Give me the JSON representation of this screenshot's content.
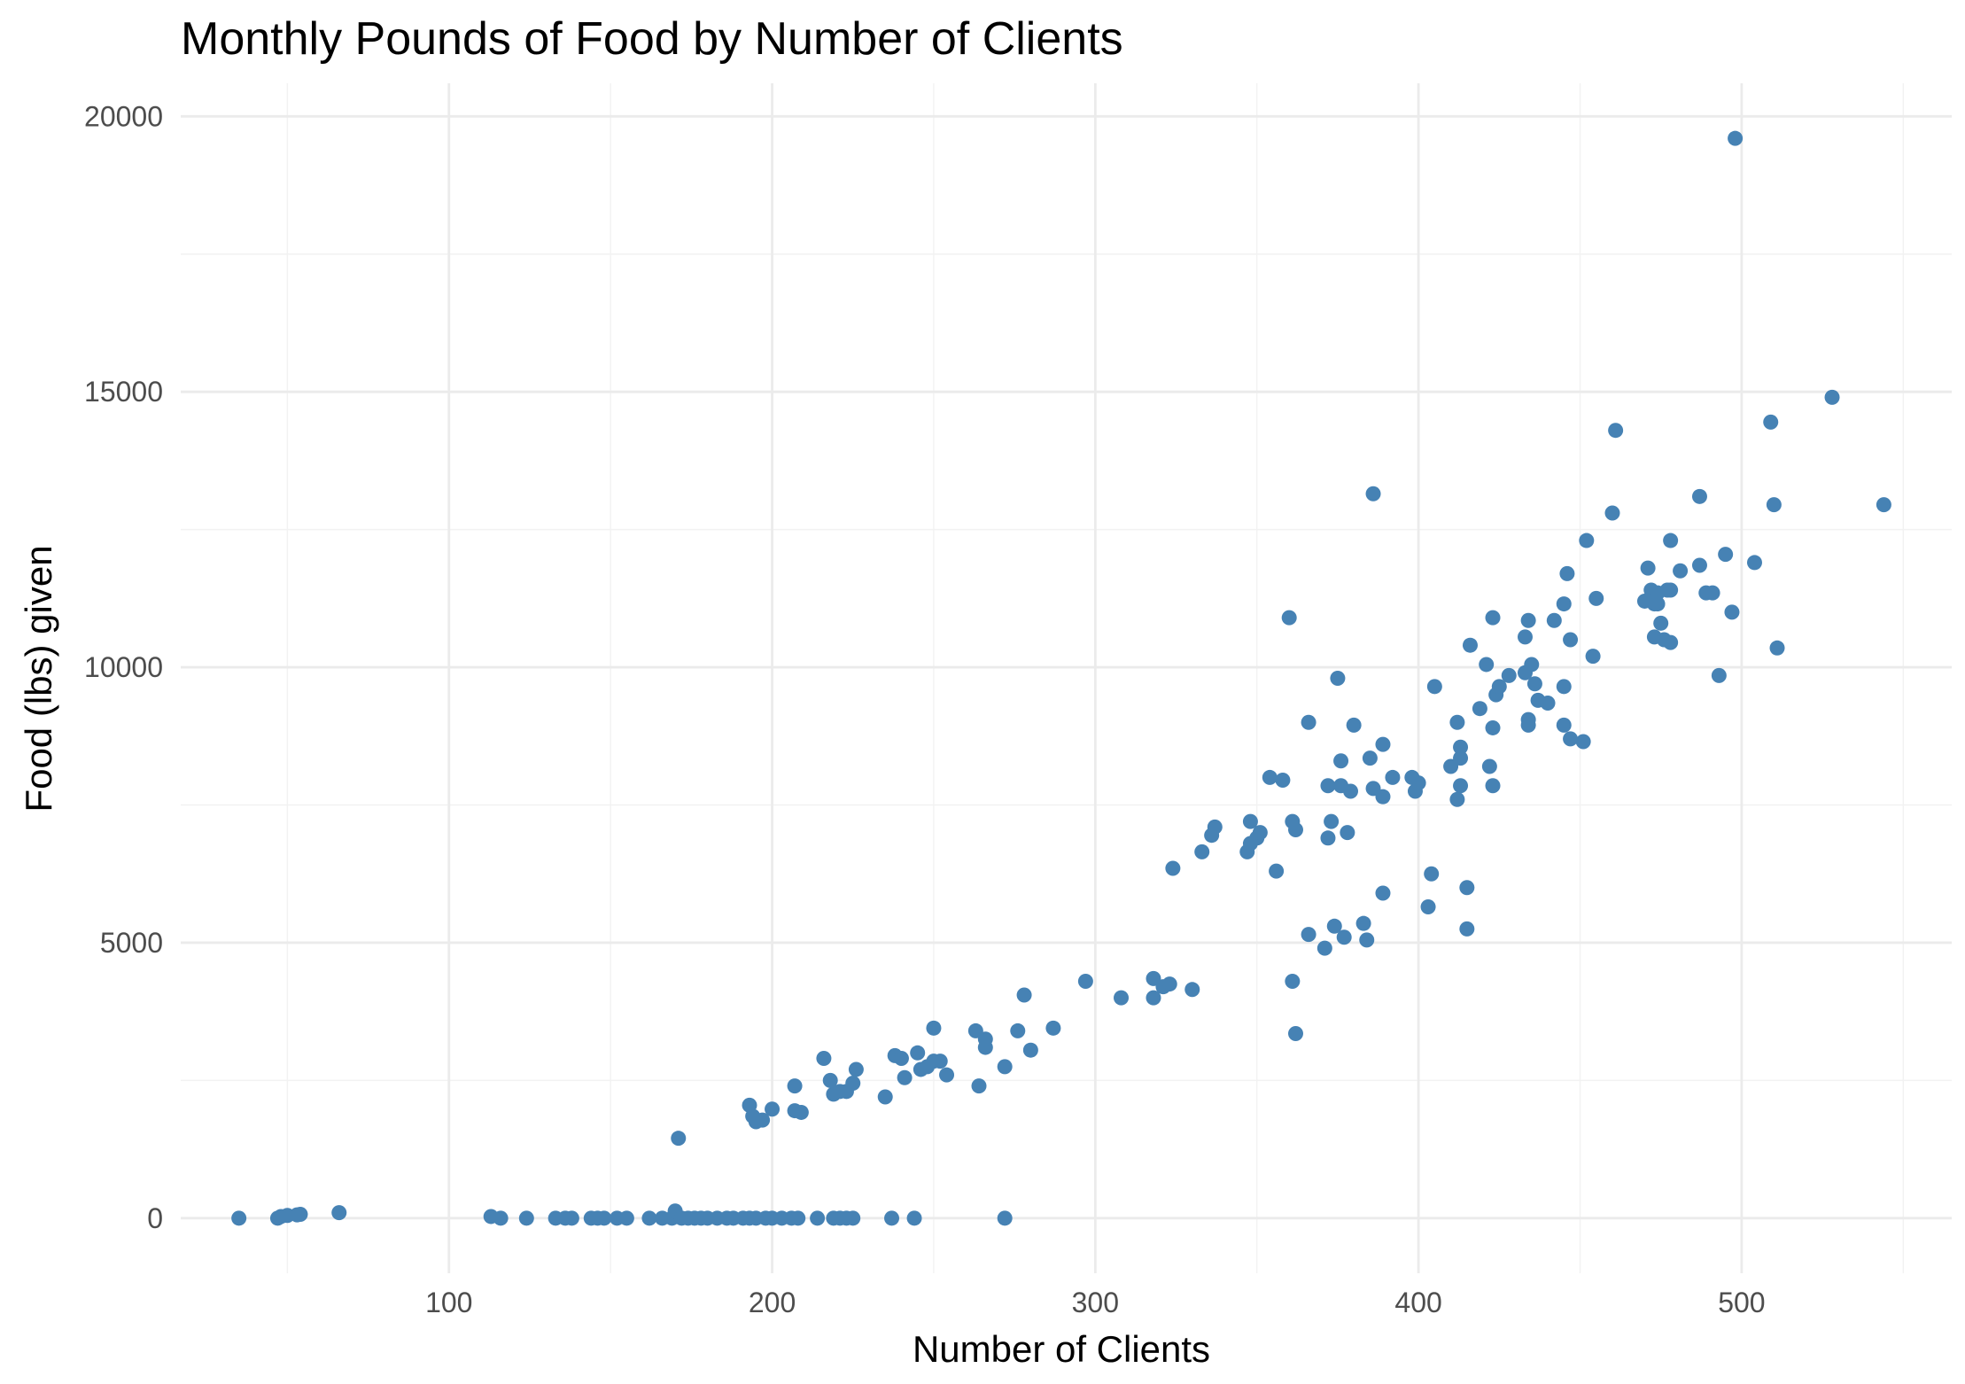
{
  "chart_data": {
    "type": "scatter",
    "title": "Monthly Pounds of Food by Number of Clients",
    "xlabel": "Number of Clients",
    "ylabel": "Food (lbs) given",
    "xlim": [
      17,
      565
    ],
    "ylim": [
      -1000,
      20600
    ],
    "x_ticks": [
      100,
      200,
      300,
      400,
      500
    ],
    "y_ticks": [
      0,
      5000,
      10000,
      15000,
      20000
    ],
    "grid": true,
    "point_color": "#4682b4",
    "series": [
      {
        "points": [
          [
            35,
            0
          ],
          [
            47,
            0
          ],
          [
            48,
            30
          ],
          [
            50,
            50
          ],
          [
            53,
            60
          ],
          [
            54,
            70
          ],
          [
            66,
            100
          ],
          [
            113,
            30
          ],
          [
            116,
            0
          ],
          [
            124,
            0
          ],
          [
            133,
            0
          ],
          [
            136,
            0
          ],
          [
            138,
            0
          ],
          [
            144,
            0
          ],
          [
            146,
            0
          ],
          [
            148,
            0
          ],
          [
            152,
            0
          ],
          [
            155,
            0
          ],
          [
            162,
            0
          ],
          [
            166,
            0
          ],
          [
            169,
            0
          ],
          [
            170,
            130
          ],
          [
            172,
            0
          ],
          [
            174,
            0
          ],
          [
            176,
            0
          ],
          [
            178,
            0
          ],
          [
            180,
            0
          ],
          [
            183,
            0
          ],
          [
            186,
            0
          ],
          [
            188,
            0
          ],
          [
            191,
            0
          ],
          [
            193,
            0
          ],
          [
            195,
            0
          ],
          [
            198,
            0
          ],
          [
            200,
            0
          ],
          [
            203,
            0
          ],
          [
            206,
            0
          ],
          [
            208,
            0
          ],
          [
            214,
            0
          ],
          [
            219,
            0
          ],
          [
            221,
            0
          ],
          [
            223,
            0
          ],
          [
            225,
            0
          ],
          [
            237,
            0
          ],
          [
            244,
            0
          ],
          [
            272,
            0
          ],
          [
            171,
            1450
          ],
          [
            193,
            2050
          ],
          [
            194,
            1850
          ],
          [
            195,
            1750
          ],
          [
            197,
            1780
          ],
          [
            200,
            1980
          ],
          [
            207,
            2400
          ],
          [
            207,
            1950
          ],
          [
            209,
            1920
          ],
          [
            216,
            2900
          ],
          [
            218,
            2500
          ],
          [
            219,
            2250
          ],
          [
            221,
            2300
          ],
          [
            223,
            2300
          ],
          [
            225,
            2450
          ],
          [
            226,
            2700
          ],
          [
            235,
            2200
          ],
          [
            238,
            2950
          ],
          [
            240,
            2900
          ],
          [
            241,
            2550
          ],
          [
            245,
            3000
          ],
          [
            246,
            2700
          ],
          [
            248,
            2750
          ],
          [
            250,
            3450
          ],
          [
            250,
            2850
          ],
          [
            252,
            2850
          ],
          [
            254,
            2600
          ],
          [
            263,
            3400
          ],
          [
            264,
            2400
          ],
          [
            266,
            3100
          ],
          [
            266,
            3250
          ],
          [
            272,
            2750
          ],
          [
            276,
            3400
          ],
          [
            278,
            4050
          ],
          [
            280,
            3050
          ],
          [
            287,
            3450
          ],
          [
            297,
            4300
          ],
          [
            308,
            4000
          ],
          [
            318,
            4350
          ],
          [
            318,
            4000
          ],
          [
            321,
            4200
          ],
          [
            323,
            4250
          ],
          [
            330,
            4150
          ],
          [
            324,
            6350
          ],
          [
            333,
            6650
          ],
          [
            336,
            6950
          ],
          [
            337,
            7100
          ],
          [
            347,
            6650
          ],
          [
            348,
            6800
          ],
          [
            348,
            7200
          ],
          [
            350,
            6900
          ],
          [
            351,
            7000
          ],
          [
            354,
            8000
          ],
          [
            356,
            6300
          ],
          [
            358,
            7950
          ],
          [
            360,
            10900
          ],
          [
            361,
            7200
          ],
          [
            361,
            4300
          ],
          [
            362,
            3350
          ],
          [
            362,
            7050
          ],
          [
            366,
            9000
          ],
          [
            366,
            5150
          ],
          [
            371,
            4900
          ],
          [
            372,
            6900
          ],
          [
            372,
            7850
          ],
          [
            373,
            7200
          ],
          [
            374,
            5300
          ],
          [
            375,
            9800
          ],
          [
            376,
            8300
          ],
          [
            376,
            7850
          ],
          [
            377,
            5100
          ],
          [
            378,
            7000
          ],
          [
            379,
            7750
          ],
          [
            380,
            8950
          ],
          [
            383,
            5350
          ],
          [
            384,
            5050
          ],
          [
            385,
            8350
          ],
          [
            386,
            13150
          ],
          [
            386,
            7800
          ],
          [
            389,
            7650
          ],
          [
            389,
            8600
          ],
          [
            389,
            5900
          ],
          [
            392,
            8000
          ],
          [
            398,
            8000
          ],
          [
            399,
            7750
          ],
          [
            400,
            7900
          ],
          [
            403,
            5650
          ],
          [
            404,
            6250
          ],
          [
            405,
            9650
          ],
          [
            410,
            8200
          ],
          [
            412,
            7600
          ],
          [
            412,
            9000
          ],
          [
            413,
            8350
          ],
          [
            413,
            8550
          ],
          [
            413,
            7850
          ],
          [
            415,
            6000
          ],
          [
            415,
            5250
          ],
          [
            416,
            10400
          ],
          [
            419,
            9250
          ],
          [
            421,
            10050
          ],
          [
            422,
            8200
          ],
          [
            423,
            10900
          ],
          [
            423,
            7850
          ],
          [
            423,
            8900
          ],
          [
            424,
            9500
          ],
          [
            425,
            9650
          ],
          [
            428,
            9850
          ],
          [
            433,
            9900
          ],
          [
            433,
            10550
          ],
          [
            434,
            8950
          ],
          [
            434,
            9050
          ],
          [
            434,
            10850
          ],
          [
            435,
            10050
          ],
          [
            436,
            9700
          ],
          [
            437,
            9400
          ],
          [
            440,
            9350
          ],
          [
            442,
            10850
          ],
          [
            445,
            8950
          ],
          [
            445,
            11150
          ],
          [
            445,
            9650
          ],
          [
            446,
            11700
          ],
          [
            447,
            10500
          ],
          [
            447,
            8700
          ],
          [
            451,
            8650
          ],
          [
            452,
            12300
          ],
          [
            454,
            10200
          ],
          [
            455,
            11250
          ],
          [
            460,
            12800
          ],
          [
            461,
            14300
          ],
          [
            470,
            11200
          ],
          [
            471,
            11800
          ],
          [
            472,
            11400
          ],
          [
            472,
            11200
          ],
          [
            473,
            11150
          ],
          [
            473,
            10550
          ],
          [
            474,
            11350
          ],
          [
            474,
            11150
          ],
          [
            475,
            10800
          ],
          [
            476,
            10500
          ],
          [
            477,
            11400
          ],
          [
            478,
            12300
          ],
          [
            478,
            10450
          ],
          [
            478,
            11400
          ],
          [
            481,
            11750
          ],
          [
            487,
            11850
          ],
          [
            487,
            13100
          ],
          [
            489,
            11350
          ],
          [
            491,
            11350
          ],
          [
            493,
            9850
          ],
          [
            495,
            12050
          ],
          [
            497,
            11000
          ],
          [
            498,
            19600
          ],
          [
            504,
            11900
          ],
          [
            509,
            14450
          ],
          [
            510,
            12950
          ],
          [
            511,
            10350
          ],
          [
            528,
            14900
          ],
          [
            544,
            12950
          ]
        ]
      }
    ]
  }
}
